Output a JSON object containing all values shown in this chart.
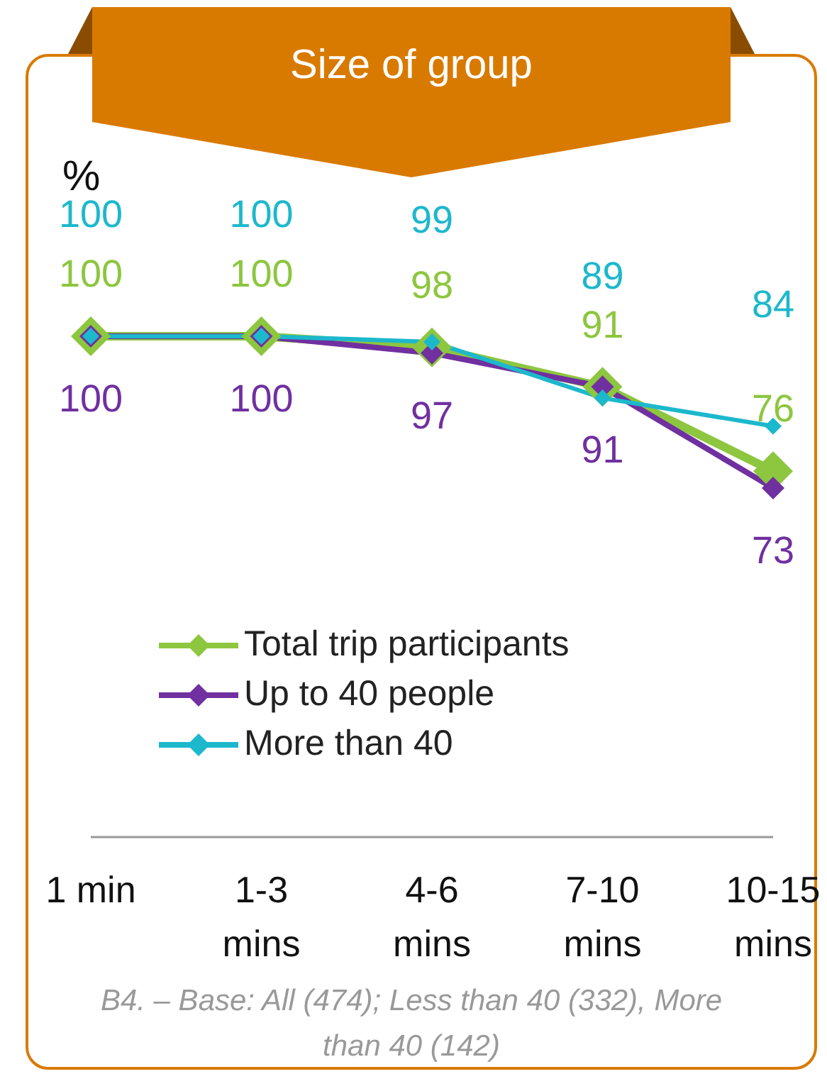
{
  "chart_data": {
    "type": "line",
    "title": "Size of group",
    "ylabel": "%",
    "categories": [
      "1 min",
      "1-3 mins",
      "4-6 mins",
      "7-10 mins",
      "10-15 mins"
    ],
    "series": [
      {
        "name": "Total trip participants",
        "color": "#8dc63f",
        "values": [
          100,
          100,
          98,
          91,
          76
        ]
      },
      {
        "name": "Up to 40 people",
        "color": "#7030a0",
        "values": [
          100,
          100,
          97,
          91,
          73
        ]
      },
      {
        "name": "More than 40",
        "color": "#1cb8cc",
        "values": [
          100,
          100,
          99,
          89,
          84
        ]
      }
    ],
    "data_labels": true,
    "legend": "bottom",
    "marker": "diamond",
    "line_style": "solid",
    "annotations": [
      "B4. – Base: All (474);  Less than 40 (332), More than 40 (142)"
    ]
  }
}
